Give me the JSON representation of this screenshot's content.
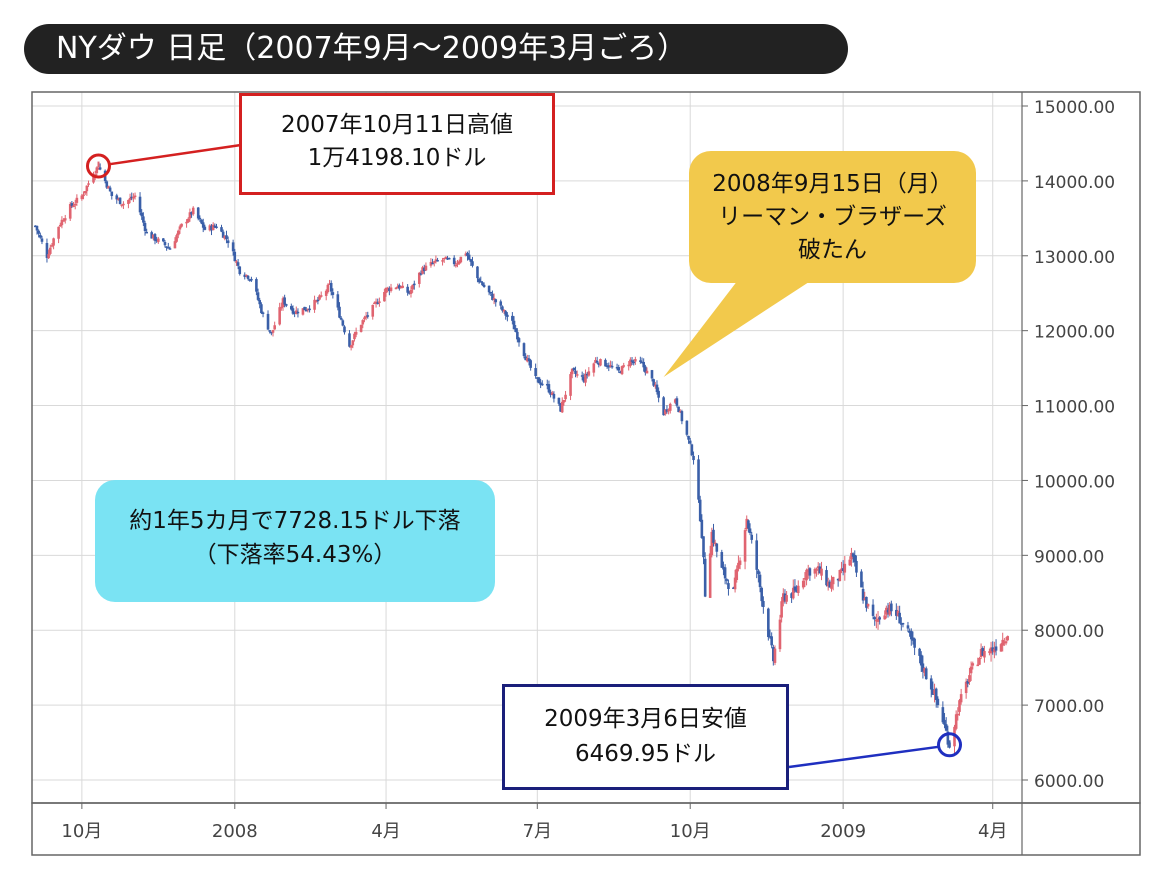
{
  "title": "NYダウ 日足（2007年9月～2009年3月ごろ）",
  "colors": {
    "up": "#e06470",
    "down": "#3a5fa8",
    "grid": "#d9d9d9",
    "frame": "#666666",
    "high": "#d42020",
    "low": "#1f2fc0",
    "lehman_bg": "#f2c94c",
    "summary_bg": "#7ae3f3"
  },
  "chart_data": {
    "type": "candlestick",
    "y_axis": {
      "min": 6000,
      "max": 15000,
      "position": "right",
      "ticks": [
        "15000.00",
        "14000.00",
        "13000.00",
        "12000.00",
        "11000.00",
        "10000.00",
        "9000.00",
        "8000.00",
        "7000.00",
        "6000.00"
      ]
    },
    "x_axis": {
      "ticks": [
        "10月",
        "2008",
        "4月",
        "7月",
        "10月",
        "2009",
        "4月"
      ]
    },
    "grid": true,
    "series": [
      {
        "values": [
          [
            "2007-09-03",
            13400
          ],
          [
            "2007-09-10",
            13000
          ],
          [
            "2007-09-17",
            13400
          ],
          [
            "2007-09-24",
            13650
          ],
          [
            "2007-10-01",
            13800
          ],
          [
            "2007-10-08",
            14100
          ],
          [
            "2007-10-11",
            14198.1
          ],
          [
            "2007-10-19",
            13800
          ],
          [
            "2007-10-26",
            13700
          ],
          [
            "2007-11-02",
            13800
          ],
          [
            "2007-11-09",
            13300
          ],
          [
            "2007-11-16",
            13200
          ],
          [
            "2007-11-23",
            13100
          ],
          [
            "2007-11-30",
            13400
          ],
          [
            "2007-12-07",
            13600
          ],
          [
            "2007-12-14",
            13350
          ],
          [
            "2007-12-21",
            13400
          ],
          [
            "2007-12-28",
            13200
          ],
          [
            "2008-01-04",
            12800
          ],
          [
            "2008-01-11",
            12700
          ],
          [
            "2008-01-18",
            12200
          ],
          [
            "2008-01-23",
            11950
          ],
          [
            "2008-01-30",
            12400
          ],
          [
            "2008-02-06",
            12250
          ],
          [
            "2008-02-13",
            12300
          ],
          [
            "2008-02-20",
            12400
          ],
          [
            "2008-02-27",
            12600
          ],
          [
            "2008-03-05",
            12150
          ],
          [
            "2008-03-10",
            11800
          ],
          [
            "2008-03-17",
            12100
          ],
          [
            "2008-03-24",
            12300
          ],
          [
            "2008-04-01",
            12550
          ],
          [
            "2008-04-08",
            12600
          ],
          [
            "2008-04-15",
            12500
          ],
          [
            "2008-04-22",
            12800
          ],
          [
            "2008-04-29",
            12900
          ],
          [
            "2008-05-06",
            12950
          ],
          [
            "2008-05-13",
            12900
          ],
          [
            "2008-05-19",
            13050
          ],
          [
            "2008-05-26",
            12700
          ],
          [
            "2008-06-02",
            12500
          ],
          [
            "2008-06-09",
            12300
          ],
          [
            "2008-06-16",
            12100
          ],
          [
            "2008-06-23",
            11700
          ],
          [
            "2008-06-30",
            11350
          ],
          [
            "2008-07-07",
            11250
          ],
          [
            "2008-07-15",
            10950
          ],
          [
            "2008-07-22",
            11450
          ],
          [
            "2008-07-29",
            11350
          ],
          [
            "2008-08-05",
            11600
          ],
          [
            "2008-08-12",
            11550
          ],
          [
            "2008-08-19",
            11450
          ],
          [
            "2008-08-26",
            11600
          ],
          [
            "2008-09-02",
            11550
          ],
          [
            "2008-09-09",
            11300
          ],
          [
            "2008-09-15",
            10900
          ],
          [
            "2008-09-22",
            11100
          ],
          [
            "2008-09-29",
            10600
          ],
          [
            "2008-10-03",
            10300
          ],
          [
            "2008-10-08",
            9300
          ],
          [
            "2008-10-10",
            8500
          ],
          [
            "2008-10-14",
            9300
          ],
          [
            "2008-10-20",
            8800
          ],
          [
            "2008-10-27",
            8500
          ],
          [
            "2008-11-04",
            9500
          ],
          [
            "2008-11-11",
            8700
          ],
          [
            "2008-11-20",
            7600
          ],
          [
            "2008-11-26",
            8450
          ],
          [
            "2008-12-03",
            8500
          ],
          [
            "2008-12-10",
            8800
          ],
          [
            "2008-12-17",
            8800
          ],
          [
            "2008-12-24",
            8600
          ],
          [
            "2008-12-31",
            8750
          ],
          [
            "2009-01-06",
            9000
          ],
          [
            "2009-01-13",
            8450
          ],
          [
            "2009-01-20",
            8100
          ],
          [
            "2009-01-27",
            8300
          ],
          [
            "2009-02-03",
            8200
          ],
          [
            "2009-02-10",
            7900
          ],
          [
            "2009-02-17",
            7550
          ],
          [
            "2009-02-24",
            7200
          ],
          [
            "2009-03-02",
            6800
          ],
          [
            "2009-03-06",
            6469.95
          ],
          [
            "2009-03-11",
            6950
          ],
          [
            "2009-03-18",
            7400
          ],
          [
            "2009-03-25",
            7700
          ],
          [
            "2009-04-01",
            7750
          ],
          [
            "2009-04-08",
            7900
          ],
          [
            "2009-04-13",
            8050
          ]
        ]
      }
    ],
    "annotations": [
      {
        "lines": [
          "2007年10月11日高値",
          "1万4198.10ドル"
        ],
        "date": "2007-10-11",
        "value": 14198.1
      },
      {
        "lines": [
          "2008年9月15日（月）",
          "リーマン・ブラザーズ",
          "破たん"
        ],
        "date": "2008-09-15"
      },
      {
        "lines": [
          "約1年5カ月で7728.15ドル下落",
          "（下落率54.43%）"
        ]
      },
      {
        "lines": [
          "2009年3月6日安値",
          "6469.95ドル"
        ],
        "date": "2009-03-06",
        "value": 6469.95
      }
    ]
  }
}
